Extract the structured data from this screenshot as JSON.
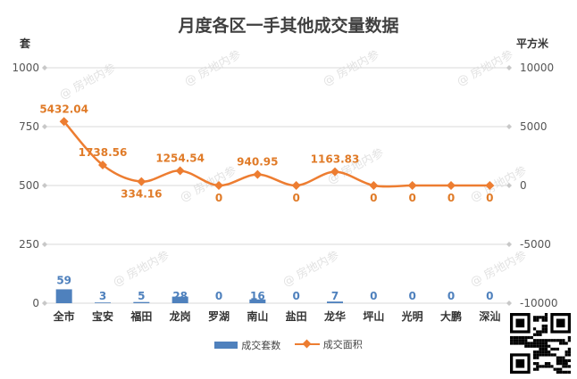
{
  "chart_data": {
    "type": "bar+line",
    "title": "月度各区一手其他成交量数据",
    "left_axis_unit": "套",
    "right_axis_unit": "平方米",
    "categories": [
      "全市",
      "宝安",
      "福田",
      "龙岗",
      "罗湖",
      "南山",
      "盐田",
      "龙华",
      "坪山",
      "光明",
      "大鹏",
      "深汕"
    ],
    "series": [
      {
        "name": "成交套数",
        "type": "bar",
        "axis": "left",
        "color": "#4f81bd",
        "label_color": "#4f81bd",
        "values": [
          59,
          3,
          5,
          28,
          0,
          16,
          0,
          7,
          0,
          0,
          0,
          0
        ],
        "labels": [
          "59",
          "3",
          "5",
          "28",
          "0",
          "16",
          "0",
          "7",
          "0",
          "0",
          "0",
          "0"
        ]
      },
      {
        "name": "成交面积",
        "type": "line",
        "axis": "right",
        "color": "#ed7d31",
        "label_color": "#e07b28",
        "values": [
          5432.04,
          1738.56,
          334.16,
          1254.54,
          0,
          940.95,
          0,
          1163.83,
          0,
          0,
          0,
          0
        ],
        "labels": [
          "5432.04",
          "1738.56",
          "334.16",
          "1254.54",
          "0",
          "940.95",
          "0",
          "1163.83",
          "0",
          "0",
          "0",
          "0"
        ]
      }
    ],
    "left_axis": {
      "min": 0,
      "max": 1000,
      "ticks": [
        0,
        250,
        500,
        750,
        1000
      ],
      "tick_labels": [
        "0",
        "250",
        "500",
        "750",
        "1000"
      ]
    },
    "right_axis": {
      "min": -10000,
      "max": 10000,
      "ticks": [
        -10000,
        -5000,
        0,
        5000,
        10000
      ],
      "tick_labels": [
        "-10000",
        "-5000",
        "0",
        "5000",
        "10000"
      ]
    },
    "grid": true,
    "legend_position": "bottom",
    "watermark": "房地内参",
    "qr_code": "qr-code"
  }
}
